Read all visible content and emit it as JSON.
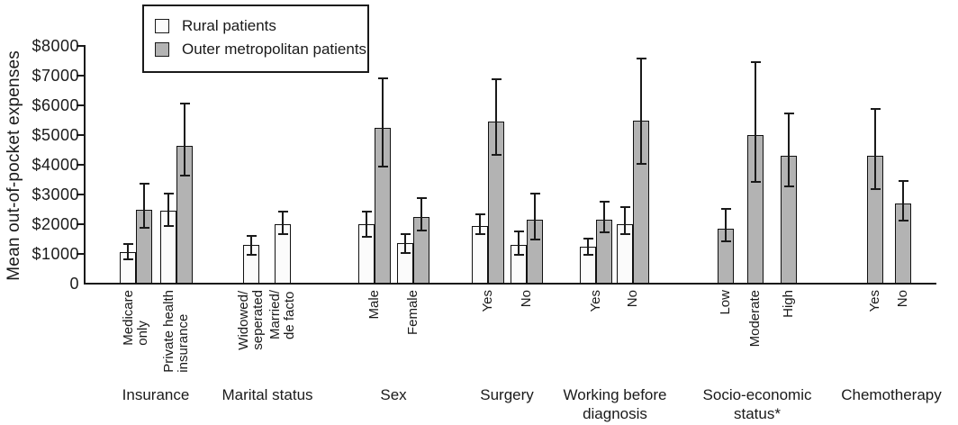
{
  "chart_data": {
    "type": "bar",
    "title": "",
    "ylabel": "Mean out-of-pocket expenses",
    "xlabel": "",
    "ylim": [
      0,
      8000
    ],
    "grid": false,
    "yticks": [
      0,
      1000,
      2000,
      3000,
      4000,
      5000,
      6000,
      7000,
      8000
    ],
    "ytick_labels": [
      "0",
      "$1000",
      "$2000",
      "$3000",
      "$4000",
      "$5000",
      "$6000",
      "$7000",
      "$8000"
    ],
    "error_bars": "95% CI whiskers with caps",
    "legend": {
      "position": "top-left-inside",
      "entries": [
        {
          "label": "Rural patients",
          "fill": "#fbfbfb",
          "border": "#111111"
        },
        {
          "label": "Outer metropolitan patients",
          "fill": "#b3b3b3",
          "border": "#111111"
        }
      ]
    },
    "groups": [
      {
        "label": "Insurance",
        "categories": [
          {
            "label": "Medicare\nonly",
            "bars": [
              {
                "series": "Rural patients",
                "mean": 1050,
                "err_low": 800,
                "err_high": 1350
              },
              {
                "series": "Outer metropolitan patients",
                "mean": 2500,
                "err_low": 1850,
                "err_high": 3400
              }
            ]
          },
          {
            "label": "Private health\ninsurance",
            "bars": [
              {
                "series": "Rural patients",
                "mean": 2450,
                "err_low": 1900,
                "err_high": 3050
              },
              {
                "series": "Outer metropolitan patients",
                "mean": 4650,
                "err_low": 3600,
                "err_high": 6100
              }
            ]
          }
        ]
      },
      {
        "label": "Marital status",
        "categories": [
          {
            "label": "Widowed/\nseperated",
            "bars": [
              {
                "series": "Rural patients",
                "mean": 1300,
                "err_low": 950,
                "err_high": 1650
              }
            ]
          },
          {
            "label": "Married/\nde facto",
            "bars": [
              {
                "series": "Rural patients",
                "mean": 2000,
                "err_low": 1650,
                "err_high": 2450
              }
            ]
          }
        ]
      },
      {
        "label": "Sex",
        "categories": [
          {
            "label": "Male",
            "bars": [
              {
                "series": "Rural patients",
                "mean": 2000,
                "err_low": 1550,
                "err_high": 2450
              },
              {
                "series": "Outer metropolitan patients",
                "mean": 5250,
                "err_low": 3900,
                "err_high": 6950
              }
            ]
          },
          {
            "label": "Female",
            "bars": [
              {
                "series": "Rural patients",
                "mean": 1350,
                "err_low": 1000,
                "err_high": 1700
              },
              {
                "series": "Outer metropolitan patients",
                "mean": 2250,
                "err_low": 1750,
                "err_high": 2900
              }
            ]
          }
        ]
      },
      {
        "label": "Surgery",
        "categories": [
          {
            "label": "Yes",
            "bars": [
              {
                "series": "Rural patients",
                "mean": 1950,
                "err_low": 1650,
                "err_high": 2350
              },
              {
                "series": "Outer metropolitan patients",
                "mean": 5450,
                "err_low": 4300,
                "err_high": 6900
              }
            ]
          },
          {
            "label": "No",
            "bars": [
              {
                "series": "Rural patients",
                "mean": 1300,
                "err_low": 950,
                "err_high": 1800
              },
              {
                "series": "Outer metropolitan patients",
                "mean": 2150,
                "err_low": 1450,
                "err_high": 3050
              }
            ]
          }
        ]
      },
      {
        "label": "Working before\ndiagnosis",
        "categories": [
          {
            "label": "Yes",
            "bars": [
              {
                "series": "Rural patients",
                "mean": 1250,
                "err_low": 950,
                "err_high": 1550
              },
              {
                "series": "Outer metropolitan patients",
                "mean": 2150,
                "err_low": 1700,
                "err_high": 2800
              }
            ]
          },
          {
            "label": "No",
            "bars": [
              {
                "series": "Rural patients",
                "mean": 2000,
                "err_low": 1650,
                "err_high": 2600
              },
              {
                "series": "Outer metropolitan patients",
                "mean": 5500,
                "err_low": 4000,
                "err_high": 7600
              }
            ]
          }
        ]
      },
      {
        "label": "Socio-economic\nstatus*",
        "categories": [
          {
            "label": "Low",
            "bars": [
              {
                "series": "Outer metropolitan patients",
                "mean": 1850,
                "err_low": 1400,
                "err_high": 2550
              }
            ]
          },
          {
            "label": "Moderate",
            "bars": [
              {
                "series": "Outer metropolitan patients",
                "mean": 5000,
                "err_low": 3400,
                "err_high": 7500
              }
            ]
          },
          {
            "label": "High",
            "bars": [
              {
                "series": "Outer metropolitan patients",
                "mean": 4300,
                "err_low": 3250,
                "err_high": 5750
              }
            ]
          }
        ]
      },
      {
        "label": "Chemotherapy",
        "categories": [
          {
            "label": "Yes",
            "bars": [
              {
                "series": "Outer metropolitan patients",
                "mean": 4300,
                "err_low": 3150,
                "err_high": 5900
              }
            ]
          },
          {
            "label": "No",
            "bars": [
              {
                "series": "Outer metropolitan patients",
                "mean": 2700,
                "err_low": 2100,
                "err_high": 3500
              }
            ]
          }
        ]
      }
    ]
  }
}
